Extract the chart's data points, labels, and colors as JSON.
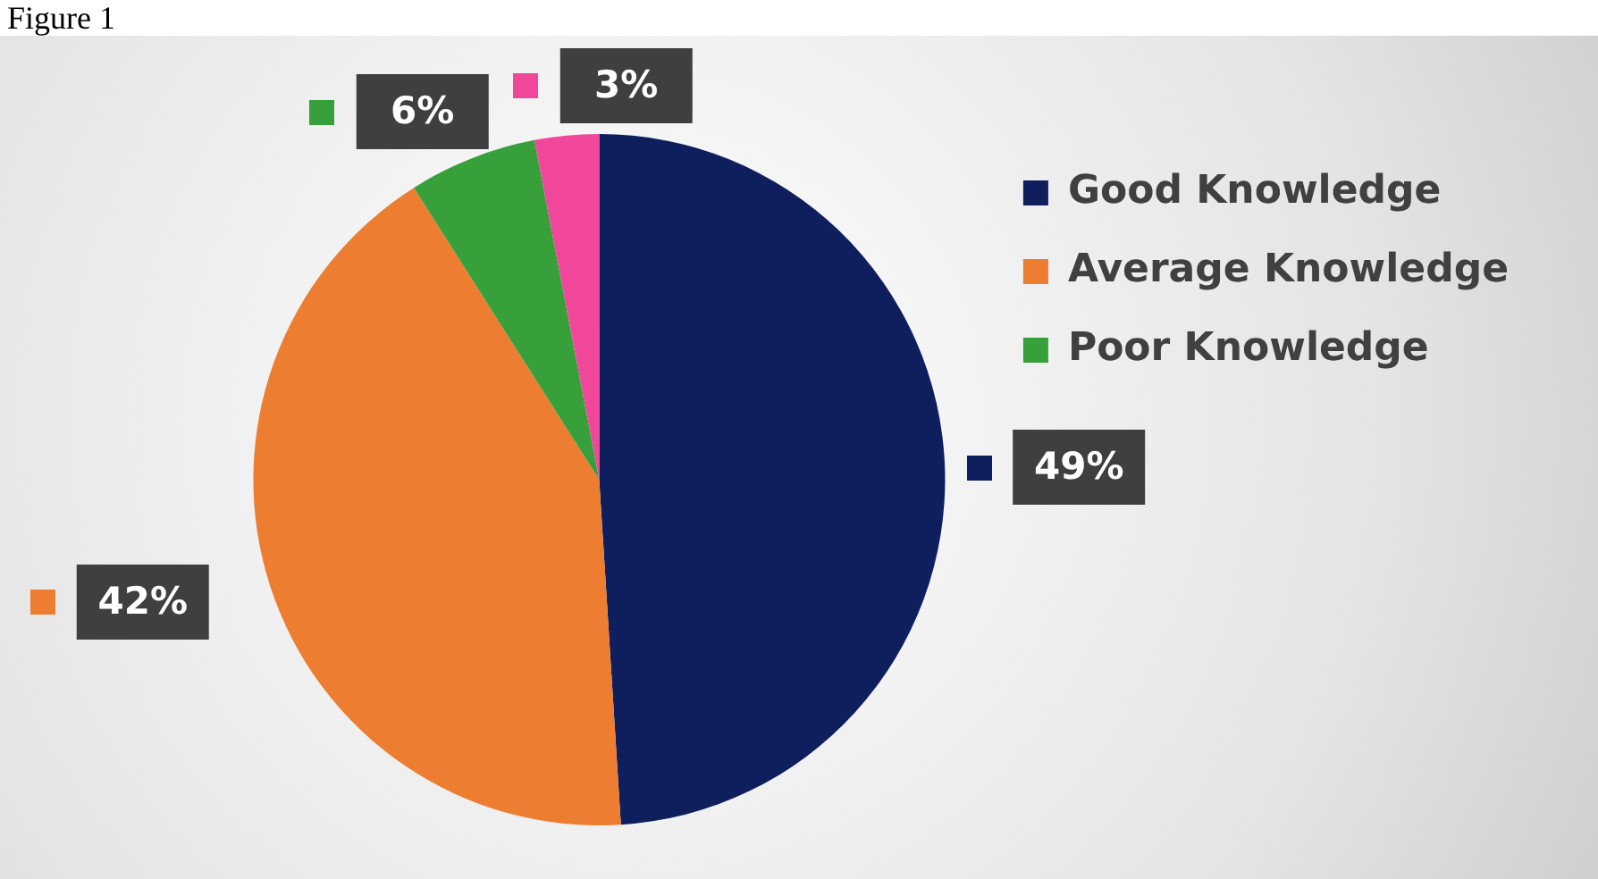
{
  "chart_data": {
    "type": "pie",
    "title": "Figure 1",
    "categories": [
      "Good Knowledge",
      "Average Knowledge",
      "Poor Knowledge",
      null
    ],
    "values": [
      49,
      42,
      6,
      3
    ],
    "colors": [
      "#0f1f5e",
      "#ed7d31",
      "#37a03a",
      "#f0479a"
    ],
    "value_labels": [
      "49%",
      "42%",
      "6%",
      "3%"
    ],
    "legend": "top right"
  }
}
